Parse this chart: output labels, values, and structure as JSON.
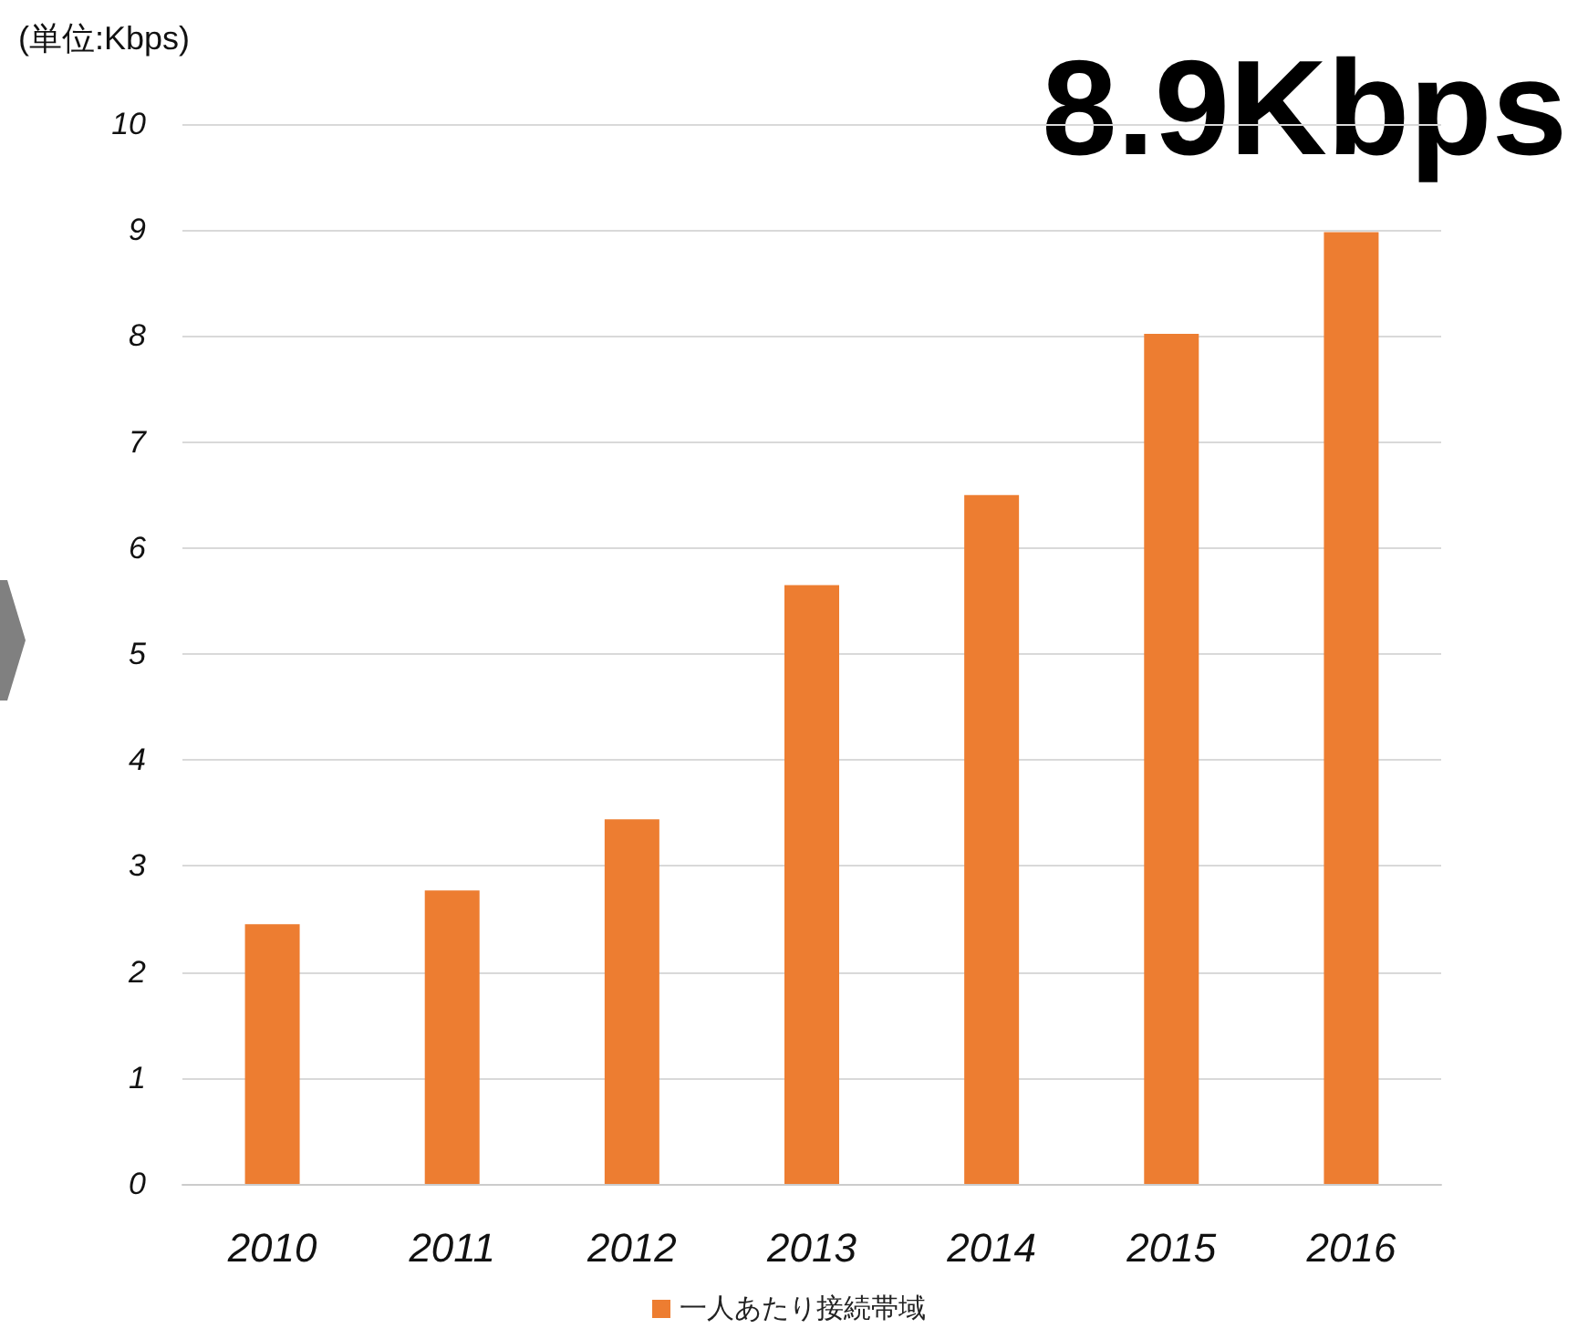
{
  "chart_data": {
    "type": "bar",
    "ylabel": "(単位:Kbps)",
    "annotations": [
      "8.9Kbps"
    ],
    "categories": [
      "2010",
      "2011",
      "2012",
      "2013",
      "2014",
      "2015",
      "2016"
    ],
    "series": [
      {
        "name": "一人あたり接続帯域",
        "color": "#ed7d31",
        "values": [
          2.45,
          2.77,
          3.44,
          5.65,
          6.5,
          8.02,
          8.98
        ]
      }
    ],
    "ylim": [
      0,
      10
    ],
    "yticks": [
      0,
      1,
      2,
      3,
      4,
      5,
      6,
      7,
      8,
      9,
      10
    ],
    "grid": "y",
    "legend": "bottom"
  }
}
